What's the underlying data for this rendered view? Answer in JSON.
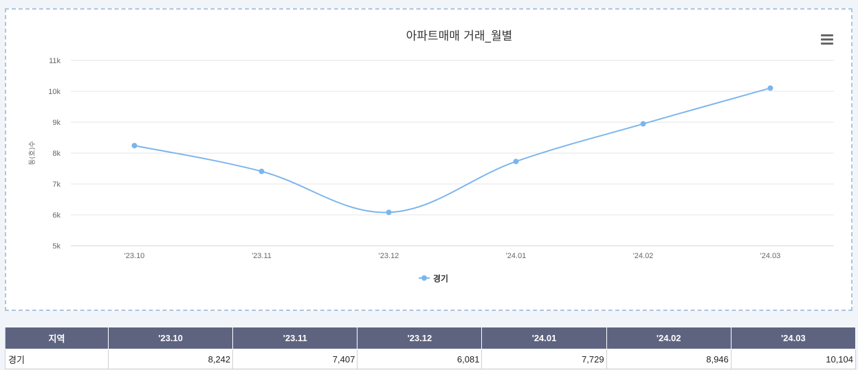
{
  "chart_data": {
    "type": "line",
    "title": "아파트매매 거래_월별",
    "ylabel": "동(호)수",
    "categories": [
      "'23.10",
      "'23.11",
      "'23.12",
      "'24.01",
      "'24.02",
      "'24.03"
    ],
    "series": [
      {
        "name": "경기",
        "values": [
          8242,
          7407,
          6081,
          7729,
          8946,
          10104
        ],
        "color": "#7cb5ec"
      }
    ],
    "yticks": [
      "5k",
      "6k",
      "7k",
      "8k",
      "9k",
      "10k",
      "11k"
    ],
    "ylim": [
      5000,
      11000
    ],
    "grid": true,
    "legend": "bottom-center"
  },
  "menu_icon": "hamburger-menu-icon",
  "table": {
    "headers": [
      "지역",
      "'23.10",
      "'23.11",
      "'23.12",
      "'24.01",
      "'24.02",
      "'24.03"
    ],
    "rows": [
      [
        "경기",
        "8,242",
        "7,407",
        "6,081",
        "7,729",
        "8,946",
        "10,104"
      ]
    ]
  }
}
